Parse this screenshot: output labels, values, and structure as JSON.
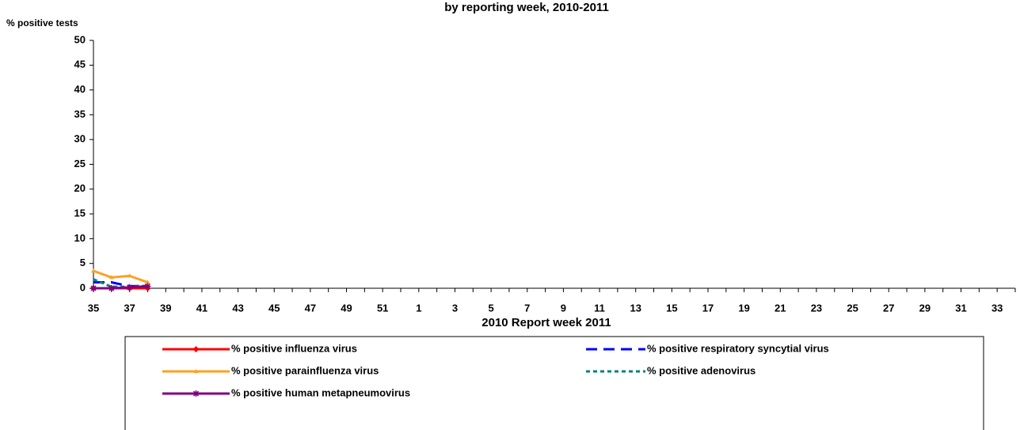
{
  "chart_data": {
    "type": "line",
    "title": "by reporting week, 2010-2011",
    "y_label": "% positive tests",
    "x_label": "2010  Report week   2011",
    "categories": [
      "35",
      null,
      "37",
      null,
      "39",
      null,
      "41",
      null,
      "43",
      null,
      "45",
      null,
      "47",
      null,
      "49",
      null,
      "51",
      null,
      "1",
      null,
      "3",
      null,
      "5",
      null,
      "7",
      null,
      "9",
      null,
      "11",
      null,
      "13",
      null,
      "15",
      null,
      "17",
      null,
      "19",
      null,
      "21",
      null,
      "23",
      null,
      "25",
      null,
      "27",
      null,
      "29",
      null,
      "31",
      null,
      "33",
      null
    ],
    "ylim": [
      0,
      50
    ],
    "yticks": [
      0,
      5,
      10,
      15,
      20,
      25,
      30,
      35,
      40,
      45,
      50
    ],
    "grid": false,
    "series": [
      {
        "name": "% positive influenza virus",
        "color": "#ff0000",
        "dash": "solid",
        "marker": "diamond",
        "values": [
          0,
          0,
          0,
          0,
          null,
          null,
          null,
          null,
          null,
          null,
          null,
          null,
          null,
          null,
          null,
          null,
          null,
          null,
          null,
          null,
          null,
          null,
          null,
          null,
          null,
          null,
          null,
          null,
          null,
          null,
          null,
          null,
          null,
          null,
          null,
          null,
          null,
          null,
          null,
          null,
          null,
          null,
          null,
          null,
          null,
          null,
          null,
          null,
          null,
          null,
          null,
          null
        ]
      },
      {
        "name": "% positive respiratory syncytial virus",
        "color": "#0000ff",
        "dash": "dashed",
        "marker": "none",
        "values": [
          1.2,
          1.2,
          0.4,
          0.5,
          null,
          null,
          null,
          null,
          null,
          null,
          null,
          null,
          null,
          null,
          null,
          null,
          null,
          null,
          null,
          null,
          null,
          null,
          null,
          null,
          null,
          null,
          null,
          null,
          null,
          null,
          null,
          null,
          null,
          null,
          null,
          null,
          null,
          null,
          null,
          null,
          null,
          null,
          null,
          null,
          null,
          null,
          null,
          null,
          null,
          null,
          null,
          null
        ]
      },
      {
        "name": "% positive parainfluenza virus",
        "color": "#ffa020",
        "dash": "solid",
        "marker": "triangle",
        "values": [
          3.5,
          2.2,
          2.5,
          1.2,
          null,
          null,
          null,
          null,
          null,
          null,
          null,
          null,
          null,
          null,
          null,
          null,
          null,
          null,
          null,
          null,
          null,
          null,
          null,
          null,
          null,
          null,
          null,
          null,
          null,
          null,
          null,
          null,
          null,
          null,
          null,
          null,
          null,
          null,
          null,
          null,
          null,
          null,
          null,
          null,
          null,
          null,
          null,
          null,
          null,
          null,
          null,
          null
        ]
      },
      {
        "name": "% positive adenovirus",
        "color": "#008080",
        "dash": "dotted",
        "marker": "none",
        "values": [
          1.8,
          0.3,
          0.3,
          0.5,
          null,
          null,
          null,
          null,
          null,
          null,
          null,
          null,
          null,
          null,
          null,
          null,
          null,
          null,
          null,
          null,
          null,
          null,
          null,
          null,
          null,
          null,
          null,
          null,
          null,
          null,
          null,
          null,
          null,
          null,
          null,
          null,
          null,
          null,
          null,
          null,
          null,
          null,
          null,
          null,
          null,
          null,
          null,
          null,
          null,
          null,
          null,
          null
        ]
      },
      {
        "name": "% positive human metapneumovirus",
        "color": "#800080",
        "dash": "solid",
        "marker": "asterisk",
        "values": [
          0,
          0,
          0.2,
          0.4,
          null,
          null,
          null,
          null,
          null,
          null,
          null,
          null,
          null,
          null,
          null,
          null,
          null,
          null,
          null,
          null,
          null,
          null,
          null,
          null,
          null,
          null,
          null,
          null,
          null,
          null,
          null,
          null,
          null,
          null,
          null,
          null,
          null,
          null,
          null,
          null,
          null,
          null,
          null,
          null,
          null,
          null,
          null,
          null,
          null,
          null,
          null,
          null
        ]
      }
    ]
  }
}
